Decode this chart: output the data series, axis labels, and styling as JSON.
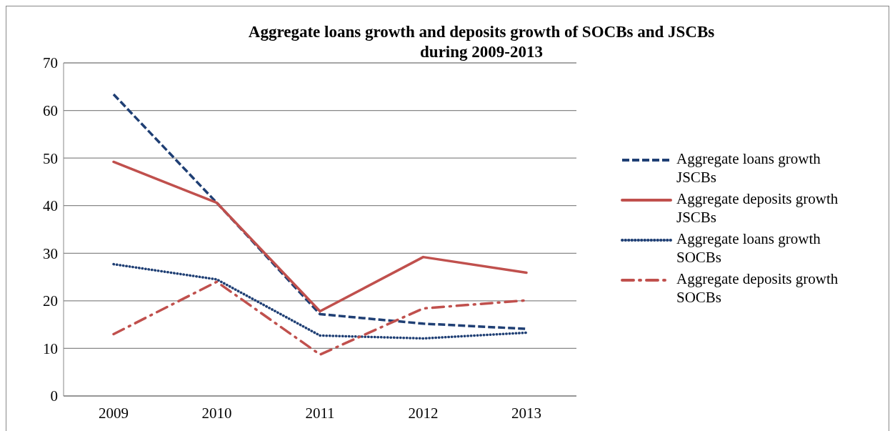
{
  "chart_data": {
    "type": "line",
    "title": "Aggregate loans growth and deposits growth of SOCBs and JSCBs\nduring 2009-2013",
    "categories": [
      "2009",
      "2010",
      "2011",
      "2012",
      "2013"
    ],
    "series": [
      {
        "name": "Aggregate loans growth JSCBs",
        "color": "#1f3f74",
        "line_style": "dashed",
        "values": [
          63.4,
          40.6,
          17.2,
          15.2,
          14.1
        ]
      },
      {
        "name": "Aggregate deposits growth JSCBs",
        "color": "#c0504d",
        "line_style": "solid",
        "values": [
          49.2,
          40.6,
          17.8,
          29.2,
          25.9
        ]
      },
      {
        "name": "Aggregate loans growth SOCBs",
        "color": "#1f3f74",
        "line_style": "dotted",
        "values": [
          27.7,
          24.5,
          12.7,
          12.1,
          13.3
        ]
      },
      {
        "name": "Aggregate deposits growth SOCBs",
        "color": "#c0504d",
        "line_style": "dashdot",
        "values": [
          13.0,
          24.0,
          8.7,
          18.4,
          20.1
        ]
      }
    ],
    "ylim": [
      0,
      70
    ],
    "yticks": [
      0,
      10,
      20,
      30,
      40,
      50,
      60,
      70
    ],
    "grid": "y",
    "legend": "right",
    "marker": "none"
  }
}
